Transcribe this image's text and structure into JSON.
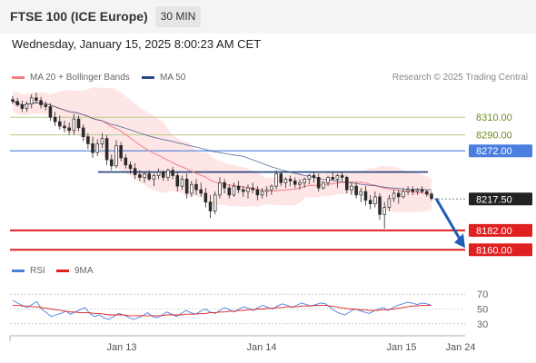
{
  "header": {
    "title": "FTSE 100 (ICE Europe)",
    "timeframe": "30 MIN"
  },
  "datetime": "Wednesday, January 15, 2025 8:00:23 AM CET",
  "copyright": "Research © 2025 Trading Central",
  "colors": {
    "ma20": "#f08080",
    "ma50": "#2a4a8c",
    "bands": "#ffe0e0",
    "candle": "#2b2b2b",
    "resistance_thin": "#b5cc8e",
    "level_blue": "#4a7fe0",
    "support": "#e02020",
    "arrow": "#1f5db8",
    "rsi": "#4a7fe0",
    "rsi_ma": "#e02020"
  },
  "chart_data": [
    {
      "type": "candlestick",
      "legend": [
        {
          "label": "MA 20 + Bollinger Bands",
          "color": "#f08080"
        },
        {
          "label": "MA 50",
          "color": "#2a4a8c"
        }
      ],
      "ylim": [
        8150,
        8340
      ],
      "x_ticks": [
        "Jan 13",
        "Jan 14",
        "Jan 15",
        "Jan 24"
      ],
      "levels": [
        {
          "value": 8310.0,
          "label": "8310.00",
          "style": "resistance"
        },
        {
          "value": 8290.0,
          "label": "8290.00",
          "style": "resistance"
        },
        {
          "value": 8272.0,
          "label": "8272.00",
          "style": "pivot"
        },
        {
          "value": 8217.5,
          "label": "8217.50",
          "style": "last"
        },
        {
          "value": 8182.0,
          "label": "8182.00",
          "style": "support"
        },
        {
          "value": 8160.0,
          "label": "8160.00",
          "style": "support"
        }
      ],
      "horizontal_line": {
        "value": 8248
      },
      "ohlc": [
        [
          8330,
          8334,
          8325,
          8328
        ],
        [
          8328,
          8332,
          8322,
          8324
        ],
        [
          8324,
          8329,
          8316,
          8320
        ],
        [
          8320,
          8328,
          8316,
          8325
        ],
        [
          8325,
          8336,
          8320,
          8332
        ],
        [
          8332,
          8338,
          8326,
          8329
        ],
        [
          8329,
          8333,
          8320,
          8324
        ],
        [
          8324,
          8328,
          8318,
          8322
        ],
        [
          8322,
          8326,
          8306,
          8310
        ],
        [
          8310,
          8316,
          8300,
          8305
        ],
        [
          8305,
          8312,
          8296,
          8300
        ],
        [
          8300,
          8306,
          8293,
          8298
        ],
        [
          8298,
          8304,
          8290,
          8295
        ],
        [
          8295,
          8314,
          8290,
          8308
        ],
        [
          8308,
          8312,
          8294,
          8298
        ],
        [
          8298,
          8302,
          8283,
          8288
        ],
        [
          8288,
          8292,
          8274,
          8280
        ],
        [
          8280,
          8288,
          8264,
          8270
        ],
        [
          8270,
          8285,
          8266,
          8280
        ],
        [
          8280,
          8292,
          8275,
          8286
        ],
        [
          8286,
          8290,
          8256,
          8262
        ],
        [
          8262,
          8268,
          8250,
          8255
        ],
        [
          8255,
          8284,
          8252,
          8278
        ],
        [
          8278,
          8282,
          8260,
          8264
        ],
        [
          8264,
          8268,
          8252,
          8256
        ],
        [
          8256,
          8260,
          8246,
          8252
        ],
        [
          8252,
          8258,
          8240,
          8245
        ],
        [
          8245,
          8250,
          8238,
          8242
        ],
        [
          8242,
          8248,
          8236,
          8246
        ],
        [
          8246,
          8250,
          8238,
          8240
        ],
        [
          8240,
          8246,
          8232,
          8244
        ],
        [
          8244,
          8252,
          8240,
          8248
        ],
        [
          8248,
          8250,
          8238,
          8242
        ],
        [
          8242,
          8252,
          8238,
          8250
        ],
        [
          8250,
          8254,
          8240,
          8244
        ],
        [
          8244,
          8248,
          8226,
          8232
        ],
        [
          8232,
          8244,
          8228,
          8240
        ],
        [
          8240,
          8246,
          8218,
          8224
        ],
        [
          8224,
          8238,
          8220,
          8234
        ],
        [
          8234,
          8240,
          8222,
          8228
        ],
        [
          8228,
          8236,
          8220,
          8224
        ],
        [
          8224,
          8230,
          8208,
          8214
        ],
        [
          8214,
          8222,
          8196,
          8204
        ],
        [
          8204,
          8226,
          8200,
          8222
        ],
        [
          8222,
          8242,
          8218,
          8236
        ],
        [
          8236,
          8240,
          8224,
          8230
        ],
        [
          8230,
          8234,
          8218,
          8222
        ],
        [
          8222,
          8236,
          8220,
          8232
        ],
        [
          8232,
          8238,
          8224,
          8228
        ],
        [
          8228,
          8232,
          8220,
          8226
        ],
        [
          8226,
          8234,
          8218,
          8230
        ],
        [
          8230,
          8236,
          8224,
          8228
        ],
        [
          8228,
          8232,
          8216,
          8222
        ],
        [
          8222,
          8230,
          8218,
          8226
        ],
        [
          8226,
          8232,
          8220,
          8228
        ],
        [
          8228,
          8234,
          8222,
          8232
        ],
        [
          8232,
          8250,
          8228,
          8246
        ],
        [
          8246,
          8248,
          8232,
          8236
        ],
        [
          8236,
          8242,
          8230,
          8240
        ],
        [
          8240,
          8244,
          8232,
          8238
        ],
        [
          8238,
          8242,
          8230,
          8234
        ],
        [
          8234,
          8240,
          8228,
          8236
        ],
        [
          8236,
          8242,
          8230,
          8240
        ],
        [
          8240,
          8246,
          8234,
          8244
        ],
        [
          8244,
          8248,
          8236,
          8242
        ],
        [
          8242,
          8246,
          8226,
          8230
        ],
        [
          8230,
          8238,
          8228,
          8236
        ],
        [
          8236,
          8244,
          8232,
          8242
        ],
        [
          8242,
          8248,
          8238,
          8240
        ],
        [
          8240,
          8246,
          8230,
          8244
        ],
        [
          8244,
          8248,
          8238,
          8242
        ],
        [
          8242,
          8244,
          8224,
          8228
        ],
        [
          8228,
          8236,
          8222,
          8232
        ],
        [
          8232,
          8236,
          8218,
          8222
        ],
        [
          8222,
          8230,
          8214,
          8226
        ],
        [
          8226,
          8232,
          8210,
          8216
        ],
        [
          8216,
          8222,
          8206,
          8212
        ],
        [
          8212,
          8226,
          8208,
          8220
        ],
        [
          8220,
          8224,
          8194,
          8200
        ],
        [
          8200,
          8214,
          8184,
          8208
        ],
        [
          8208,
          8222,
          8204,
          8218
        ],
        [
          8218,
          8228,
          8214,
          8224
        ],
        [
          8224,
          8228,
          8212,
          8220
        ],
        [
          8220,
          8230,
          8218,
          8226
        ],
        [
          8226,
          8232,
          8222,
          8228
        ],
        [
          8228,
          8232,
          8222,
          8226
        ],
        [
          8226,
          8230,
          8222,
          8228
        ],
        [
          8228,
          8232,
          8224,
          8226
        ],
        [
          8226,
          8228,
          8220,
          8223
        ],
        [
          8223,
          8226,
          8216,
          8218
        ]
      ]
    },
    {
      "type": "line",
      "legend": [
        {
          "label": "RSI",
          "color": "#4a7fe0"
        },
        {
          "label": "9MA",
          "color": "#e02020"
        }
      ],
      "ylim": [
        20,
        80
      ],
      "y_ticks": [
        "70",
        "50",
        "30"
      ],
      "series": [
        {
          "name": "RSI",
          "values": [
            62,
            58,
            55,
            52,
            56,
            60,
            50,
            45,
            40,
            42,
            44,
            47,
            43,
            46,
            49,
            52,
            44,
            40,
            42,
            38,
            36,
            40,
            44,
            42,
            39,
            36,
            38,
            41,
            45,
            40,
            38,
            42,
            46,
            43,
            40,
            44,
            48,
            45,
            43,
            47,
            50,
            46,
            44,
            48,
            52,
            49,
            46,
            50,
            53,
            51,
            48,
            52,
            55,
            52,
            50,
            54,
            57,
            55,
            52,
            55,
            58,
            56,
            54,
            56,
            58,
            57,
            52,
            47,
            44,
            42,
            46,
            50,
            48,
            46,
            44,
            47,
            50,
            52,
            48,
            52,
            55,
            57,
            59,
            58,
            56,
            58,
            57,
            55
          ]
        },
        {
          "name": "9MA",
          "values": [
            55,
            55,
            54,
            54,
            53,
            53,
            52,
            51,
            50,
            49,
            48,
            47,
            46,
            46,
            45,
            45,
            45,
            44,
            44,
            43,
            42,
            42,
            42,
            42,
            41,
            41,
            41,
            41,
            41,
            41,
            41,
            41,
            42,
            42,
            42,
            42,
            43,
            43,
            43,
            44,
            44,
            45,
            45,
            46,
            46,
            47,
            47,
            48,
            48,
            49,
            49,
            50,
            50,
            51,
            51,
            52,
            52,
            53,
            53,
            53,
            54,
            54,
            54,
            55,
            55,
            55,
            54,
            53,
            52,
            51,
            50,
            50,
            49,
            49,
            48,
            48,
            48,
            49,
            49,
            50,
            51,
            52,
            53,
            54,
            54,
            55,
            55,
            55
          ]
        }
      ],
      "x_ticks": [
        "Jan 13",
        "Jan 14",
        "Jan 15",
        "Jan 24"
      ]
    }
  ]
}
